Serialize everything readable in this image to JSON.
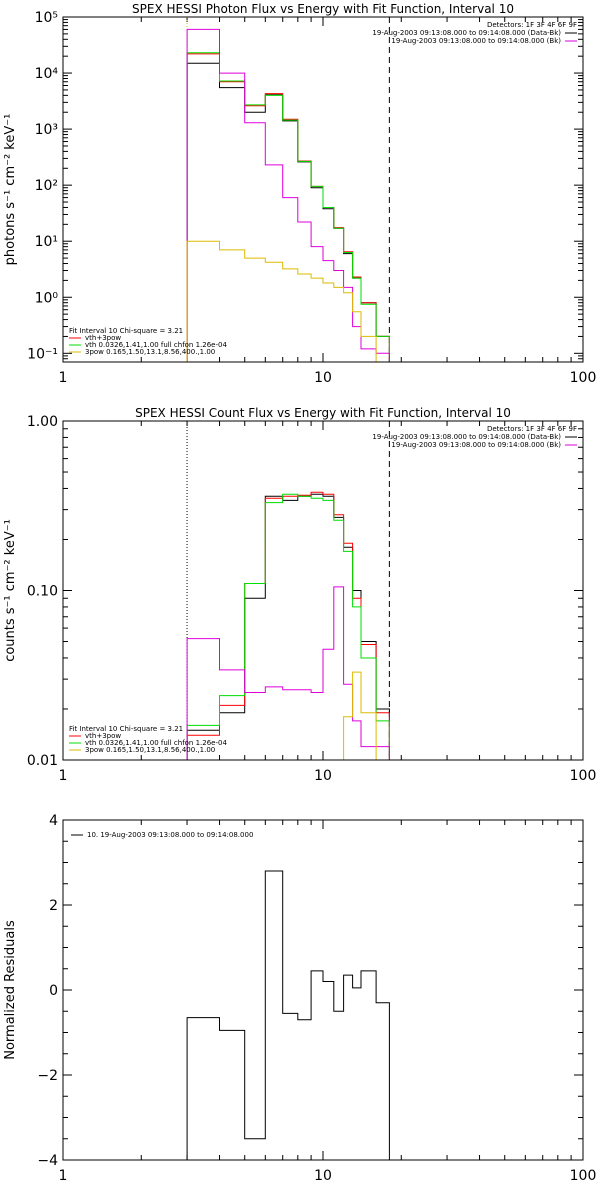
{
  "chart_data": [
    {
      "type": "line",
      "title": "SPEX HESSI Photon Flux vs Energy with Fit Function, Interval 10",
      "ylabel": "photons s⁻¹ cm⁻² keV⁻¹",
      "xlabel": "",
      "x_scale": "log",
      "y_scale": "log",
      "xlim": [
        1,
        100
      ],
      "ylim": [
        0.07,
        100000
      ],
      "x_ticks": [
        {
          "v": 1,
          "label": "1"
        },
        {
          "v": 10,
          "label": "10"
        },
        {
          "v": 100,
          "label": "100"
        }
      ],
      "y_ticks": [
        {
          "v": 0.1,
          "label": "10⁻¹"
        },
        {
          "v": 1,
          "label": "10⁰"
        },
        {
          "v": 10,
          "label": "10¹"
        },
        {
          "v": 100,
          "label": "10²"
        },
        {
          "v": 1000,
          "label": "10³"
        },
        {
          "v": 10000,
          "label": "10⁴"
        },
        {
          "v": 100000,
          "label": "10⁵"
        }
      ],
      "bin_edges": [
        3,
        4,
        5,
        6,
        7,
        8,
        9,
        10,
        11,
        12,
        13,
        14,
        16,
        18
      ],
      "series": [
        {
          "color": "#000000",
          "values": [
            15000,
            5500,
            2000,
            4100,
            1400,
            260,
            90,
            38,
            17,
            6,
            2.2,
            0.8,
            0.2
          ]
        },
        {
          "color": "#ff0000",
          "values": [
            22000,
            7000,
            2600,
            4300,
            1500,
            270,
            95,
            40,
            17.5,
            6.5,
            2.3,
            0.8,
            0.2
          ]
        },
        {
          "color": "#00dd00",
          "values": [
            23000,
            7200,
            2700,
            4000,
            1450,
            265,
            95,
            40,
            17,
            6.3,
            2.2,
            0.75,
            0.2
          ]
        },
        {
          "color": "#dd00dd",
          "values": [
            60000,
            10000,
            1300,
            230,
            60,
            22,
            8,
            4.5,
            3,
            1.5,
            0.3,
            0.12,
            0.1
          ]
        },
        {
          "color": "#ddbb00",
          "values": [
            10,
            7,
            5,
            4.2,
            3.2,
            2.6,
            2.2,
            1.8,
            1.5,
            1.2,
            0.55,
            0.2,
            0.07
          ]
        }
      ],
      "vlines": [
        {
          "x": 3,
          "style": "dotted",
          "color": "#ddbb00"
        },
        {
          "x": 18,
          "style": "dashed",
          "color": "#000000"
        }
      ],
      "legend_right": [
        {
          "text": "Detectors: 1F 3F 4F 6F 9F",
          "color": ""
        },
        {
          "text": "19-Aug-2003 09:13:08.000 to 09:14:08.000 (Data-Bk)",
          "color": "#000000"
        },
        {
          "text": "19-Aug-2003 09:13:08.000 to 09:14:08.000 (Bk)",
          "color": "#dd00dd"
        }
      ],
      "legend_left": [
        {
          "text": "Fit Interval 10   Chi-square = 3.21",
          "color": ""
        },
        {
          "text": "vth+3pow",
          "color": "#ff0000"
        },
        {
          "text": "vth 0.0326,1.41,1.00  full chfon 1.26e-04",
          "color": "#00dd00"
        },
        {
          "text": "3pow 0.165,1.50,13.1,8.56,400.,1.00",
          "color": "#ddbb00"
        }
      ]
    },
    {
      "type": "line",
      "title": "SPEX HESSI Count Flux vs Energy with Fit Function, Interval 10",
      "ylabel": "counts s⁻¹ cm⁻² keV⁻¹",
      "xlabel": "",
      "x_scale": "log",
      "y_scale": "log",
      "xlim": [
        1,
        100
      ],
      "ylim": [
        0.01,
        1.0
      ],
      "x_ticks": [
        {
          "v": 1,
          "label": "1"
        },
        {
          "v": 10,
          "label": "10"
        },
        {
          "v": 100,
          "label": "100"
        }
      ],
      "y_ticks": [
        {
          "v": 0.01,
          "label": "0.01"
        },
        {
          "v": 0.1,
          "label": "0.10"
        },
        {
          "v": 1,
          "label": "1.00"
        }
      ],
      "bin_edges": [
        3,
        4,
        5,
        6,
        7,
        8,
        9,
        10,
        11,
        12,
        13,
        14,
        16,
        18
      ],
      "series": [
        {
          "color": "#000000",
          "values": [
            0.015,
            0.019,
            0.09,
            0.36,
            0.34,
            0.36,
            0.37,
            0.36,
            0.27,
            0.18,
            0.1,
            0.05,
            0.02
          ]
        },
        {
          "color": "#ff0000",
          "values": [
            0.014,
            0.021,
            0.11,
            0.35,
            0.36,
            0.365,
            0.38,
            0.37,
            0.28,
            0.19,
            0.09,
            0.048,
            0.019
          ]
        },
        {
          "color": "#00dd00",
          "values": [
            0.016,
            0.024,
            0.11,
            0.33,
            0.37,
            0.36,
            0.35,
            0.34,
            0.26,
            0.17,
            0.08,
            0.04,
            0.017
          ]
        },
        {
          "color": "#dd00dd",
          "values": [
            0.052,
            0.034,
            0.025,
            0.027,
            0.026,
            0.026,
            0.025,
            0.045,
            0.105,
            0.028,
            0.017,
            0.012,
            0.012
          ]
        },
        {
          "color": "#ddbb00",
          "values": [
            null,
            null,
            null,
            null,
            null,
            null,
            null,
            null,
            0.009,
            0.018,
            0.033,
            0.019,
            0.009
          ]
        }
      ],
      "vlines": [
        {
          "x": 3,
          "style": "dotted",
          "color": "#000000"
        },
        {
          "x": 18,
          "style": "dashed",
          "color": "#000000"
        }
      ],
      "legend_right": [
        {
          "text": "Detectors: 1F 3F 4F 6F 9F",
          "color": ""
        },
        {
          "text": "19-Aug-2003 09:13:08.000 to 09:14:08.000 (Data-Bk)",
          "color": "#000000"
        },
        {
          "text": "19-Aug-2003 09:13:08.000 to 09:14:08.000 (Bk)",
          "color": "#dd00dd"
        }
      ],
      "legend_left": [
        {
          "text": "Fit Interval 10   Chi-square = 3.21",
          "color": ""
        },
        {
          "text": "vth+3pow",
          "color": "#ff0000"
        },
        {
          "text": "vth 0.0326,1.41,1.00  full chfon 1.26e-04",
          "color": "#00dd00"
        },
        {
          "text": "3pow 0.165,1.50,13.1,8.56,400.,1.00",
          "color": "#ddbb00"
        }
      ]
    },
    {
      "type": "line",
      "title": "",
      "ylabel": "Normalized Residuals",
      "xlabel": "",
      "x_scale": "log",
      "y_scale": "linear",
      "xlim": [
        1,
        100
      ],
      "ylim": [
        -4,
        4
      ],
      "x_ticks": [
        {
          "v": 1,
          "label": "1"
        },
        {
          "v": 10,
          "label": "10"
        },
        {
          "v": 100,
          "label": "100"
        }
      ],
      "y_ticks": [
        {
          "v": -4,
          "label": "−4"
        },
        {
          "v": -2,
          "label": "−2"
        },
        {
          "v": 0,
          "label": "0"
        },
        {
          "v": 2,
          "label": "2"
        },
        {
          "v": 4,
          "label": "4"
        }
      ],
      "bin_edges": [
        3,
        4,
        5,
        6,
        7,
        8,
        9,
        10,
        11,
        12,
        13,
        14,
        16,
        18
      ],
      "series": [
        {
          "color": "#000000",
          "values": [
            -0.65,
            -0.95,
            -3.5,
            2.8,
            -0.55,
            -0.7,
            0.45,
            0.2,
            -0.5,
            0.35,
            0.05,
            0.45,
            -0.3
          ]
        }
      ],
      "vlines": [],
      "legend_right": [],
      "legend_left": [
        {
          "text": "10. 19-Aug-2003 09:13:08.000 to 09:14:08.000",
          "color": "#000000"
        }
      ]
    }
  ]
}
